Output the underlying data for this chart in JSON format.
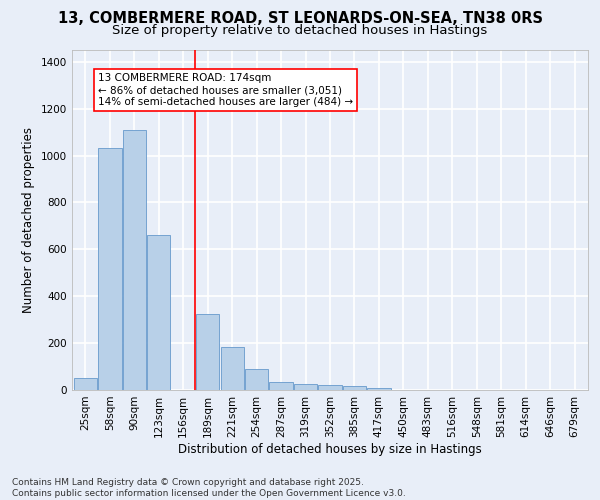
{
  "title_line1": "13, COMBERMERE ROAD, ST LEONARDS-ON-SEA, TN38 0RS",
  "title_line2": "Size of property relative to detached houses in Hastings",
  "xlabel": "Distribution of detached houses by size in Hastings",
  "ylabel": "Number of detached properties",
  "bar_color": "#b8d0e8",
  "bar_edge_color": "#6699cc",
  "background_color": "#e8eef8",
  "grid_color": "#ffffff",
  "categories": [
    "25sqm",
    "58sqm",
    "90sqm",
    "123sqm",
    "156sqm",
    "189sqm",
    "221sqm",
    "254sqm",
    "287sqm",
    "319sqm",
    "352sqm",
    "385sqm",
    "417sqm",
    "450sqm",
    "483sqm",
    "516sqm",
    "548sqm",
    "581sqm",
    "614sqm",
    "646sqm",
    "679sqm"
  ],
  "values": [
    50,
    1030,
    1110,
    660,
    0,
    325,
    185,
    90,
    35,
    25,
    20,
    15,
    10,
    0,
    0,
    0,
    0,
    0,
    0,
    0,
    0
  ],
  "ylim": [
    0,
    1450
  ],
  "yticks": [
    0,
    200,
    400,
    600,
    800,
    1000,
    1200,
    1400
  ],
  "annotation_text": "13 COMBERMERE ROAD: 174sqm\n← 86% of detached houses are smaller (3,051)\n14% of semi-detached houses are larger (484) →",
  "red_line_x": 4.5,
  "footnote": "Contains HM Land Registry data © Crown copyright and database right 2025.\nContains public sector information licensed under the Open Government Licence v3.0.",
  "title_fontsize": 10.5,
  "subtitle_fontsize": 9.5,
  "axis_fontsize": 8.5,
  "tick_fontsize": 7.5,
  "annotation_fontsize": 7.5,
  "footnote_fontsize": 6.5
}
